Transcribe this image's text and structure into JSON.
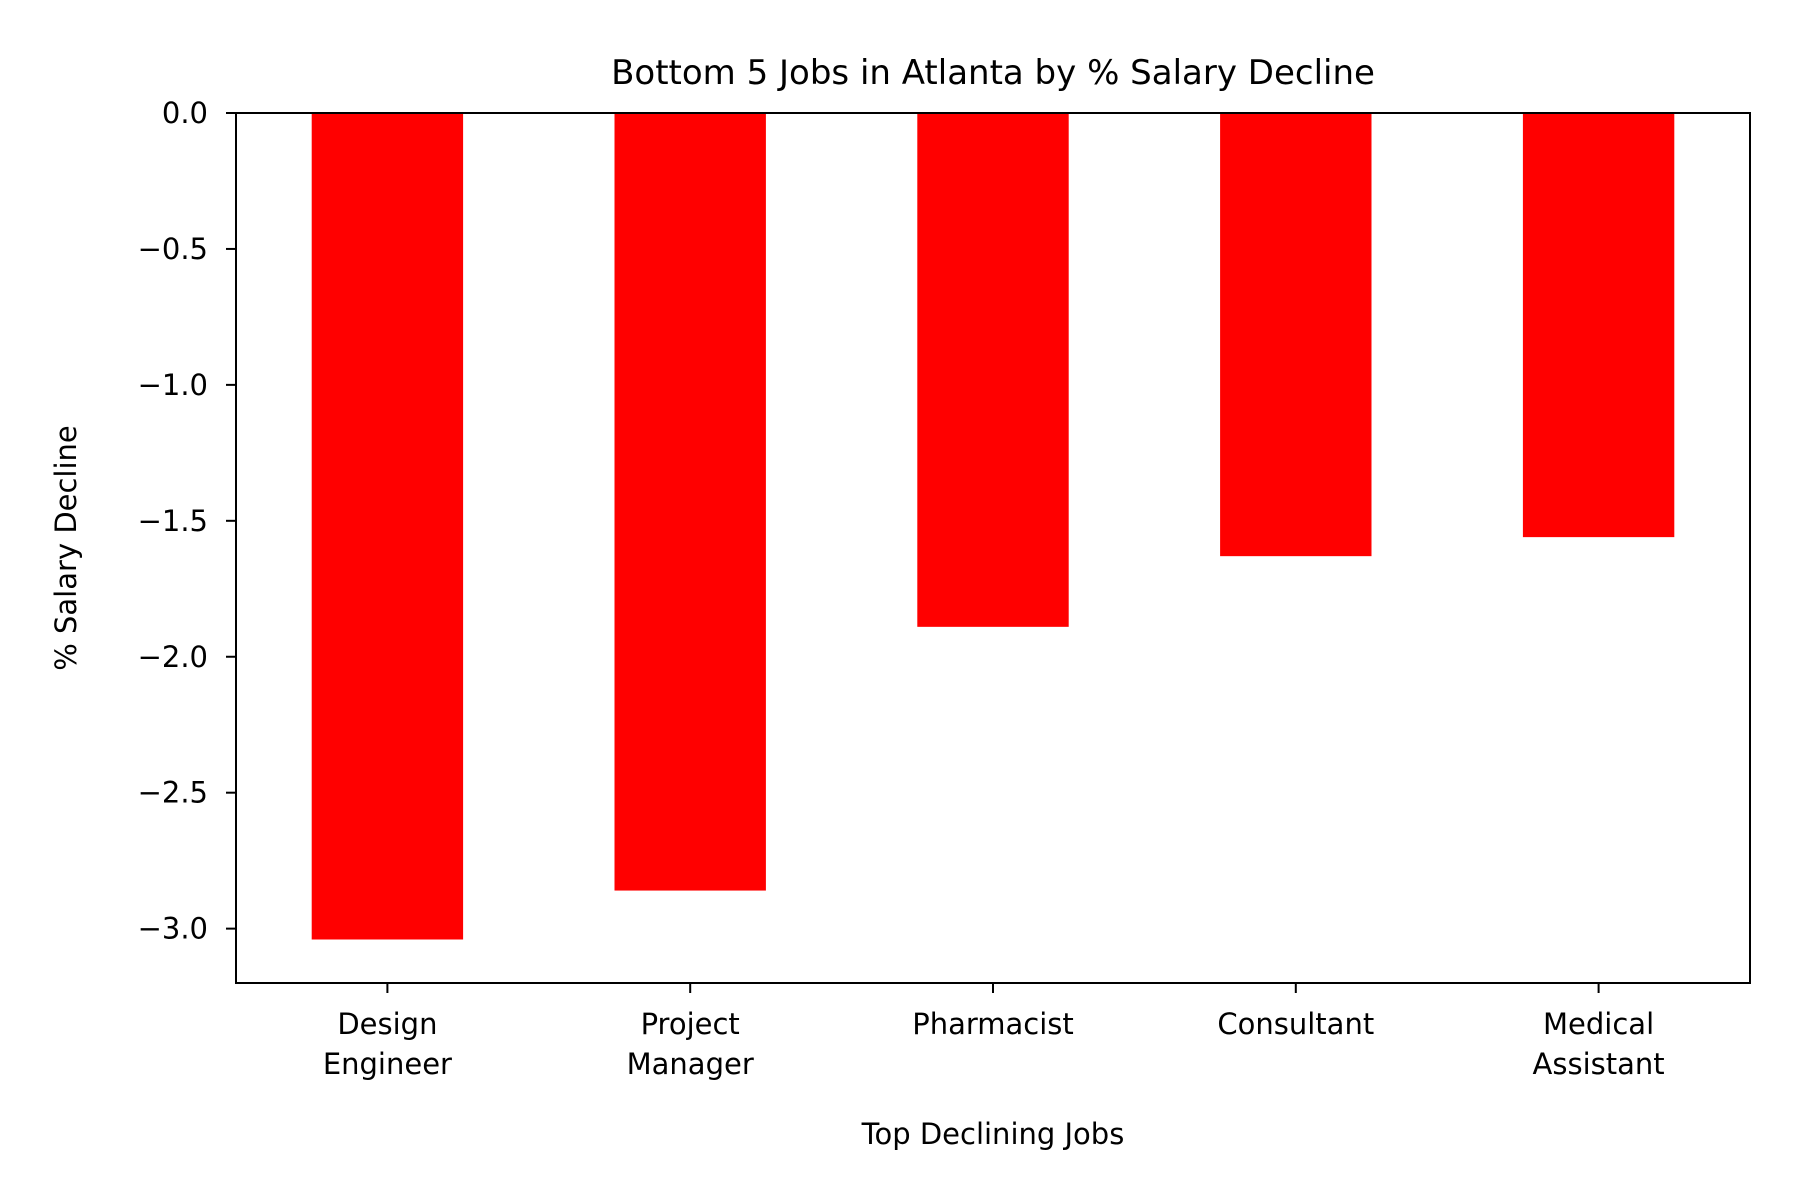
{
  "chart_data": {
    "type": "bar",
    "title": "Bottom 5 Jobs in Atlanta by % Salary Decline",
    "xlabel": "Top Declining Jobs",
    "ylabel": "% Salary Decline",
    "categories": [
      [
        "Design",
        "Engineer"
      ],
      [
        "Project",
        "Manager"
      ],
      [
        "Pharmacist"
      ],
      [
        "Consultant"
      ],
      [
        "Medical",
        "Assistant"
      ]
    ],
    "values": [
      -3.04,
      -2.86,
      -1.89,
      -1.63,
      -1.56
    ],
    "ylim": [
      -3.2,
      0.0
    ],
    "yticks": [
      0.0,
      -0.5,
      -1.0,
      -1.5,
      -2.0,
      -2.5,
      -3.0
    ],
    "ytick_labels": [
      "0.0",
      "−0.5",
      "−1.0",
      "−1.5",
      "−2.0",
      "−2.5",
      "−3.0"
    ],
    "bar_color": "#ff0000",
    "grid": false,
    "legend": "none"
  }
}
